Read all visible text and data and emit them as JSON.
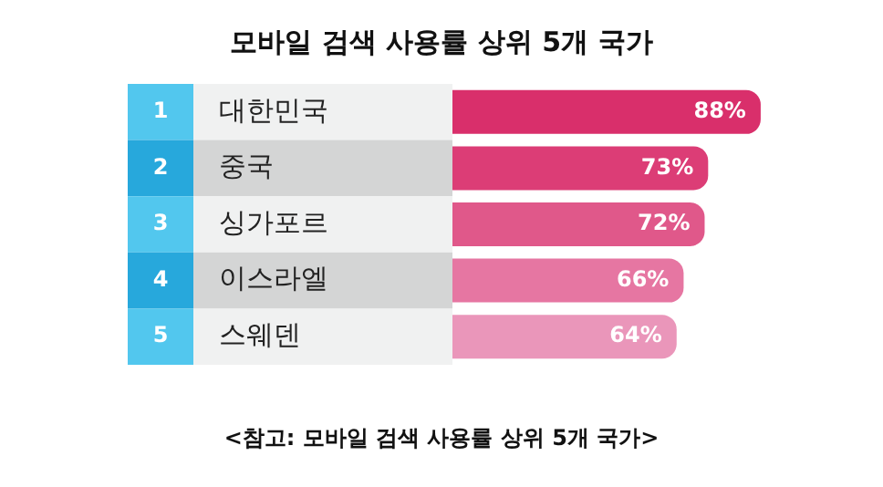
{
  "chart_data": {
    "type": "bar",
    "orientation": "horizontal",
    "title": "모바일 검색 사용률 상위 5개 국가",
    "categories": [
      "대한민국",
      "중국",
      "싱가포르",
      "이스라엘",
      "스웨덴"
    ],
    "values": [
      88,
      73,
      72,
      66,
      64
    ],
    "colors": [
      "#d92f6b",
      "#dc3d76",
      "#e0588a",
      "#e676a2",
      "#ea96ba"
    ],
    "value_labels": [
      "88%",
      "73%",
      "72%",
      "66%",
      "64%"
    ],
    "tick_labels": false,
    "legend": false,
    "annotations": [
      "1",
      "2",
      "3",
      "4",
      "5",
      "<참고: 모바일 검색 사용률 상위 5개 국가>"
    ]
  }
}
